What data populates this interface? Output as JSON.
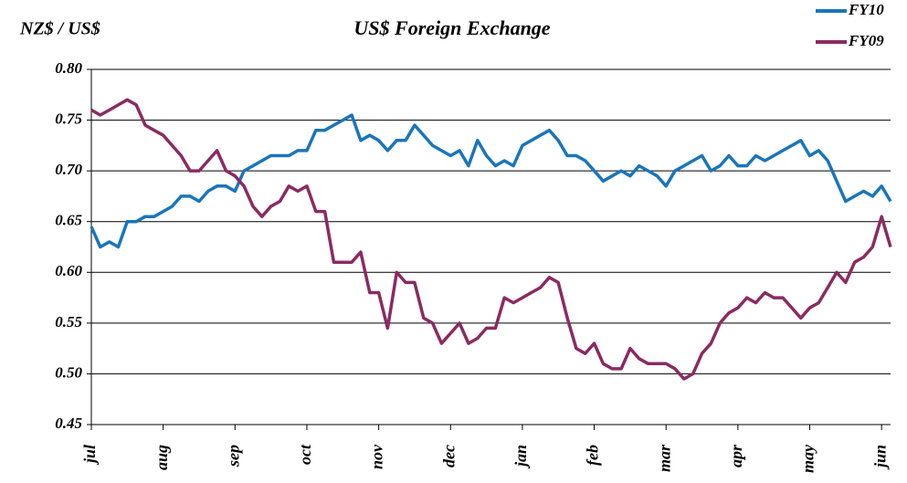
{
  "chart_data": {
    "type": "line",
    "title": "US$ Foreign Exchange",
    "y_label": "NZ$ / US$",
    "categories": [
      "jul",
      null,
      null,
      null,
      null,
      null,
      null,
      null,
      "aug",
      null,
      null,
      null,
      null,
      null,
      null,
      null,
      "sep",
      null,
      null,
      null,
      null,
      null,
      null,
      null,
      "oct",
      null,
      null,
      null,
      null,
      null,
      null,
      null,
      "nov",
      null,
      null,
      null,
      null,
      null,
      null,
      null,
      "dec",
      null,
      null,
      null,
      null,
      null,
      null,
      null,
      "jan",
      null,
      null,
      null,
      null,
      null,
      null,
      null,
      "feb",
      null,
      null,
      null,
      null,
      null,
      null,
      null,
      "mar",
      null,
      null,
      null,
      null,
      null,
      null,
      null,
      "apr",
      null,
      null,
      null,
      null,
      null,
      null,
      null,
      "may",
      null,
      null,
      null,
      null,
      null,
      null,
      null,
      "jun",
      null
    ],
    "series": [
      {
        "name": "FY10",
        "color": "#1a75bb",
        "values": [
          0.645,
          0.625,
          0.63,
          0.625,
          0.65,
          0.65,
          0.655,
          0.655,
          0.66,
          0.665,
          0.675,
          0.675,
          0.67,
          0.68,
          0.685,
          0.685,
          0.68,
          0.7,
          0.705,
          0.71,
          0.715,
          0.715,
          0.715,
          0.72,
          0.72,
          0.74,
          0.74,
          0.745,
          0.75,
          0.755,
          0.73,
          0.735,
          0.73,
          0.72,
          0.73,
          0.73,
          0.745,
          0.735,
          0.725,
          0.72,
          0.715,
          0.72,
          0.705,
          0.73,
          0.715,
          0.705,
          0.71,
          0.705,
          0.725,
          0.73,
          0.735,
          0.74,
          0.73,
          0.715,
          0.715,
          0.71,
          0.7,
          0.69,
          0.695,
          0.7,
          0.695,
          0.705,
          0.7,
          0.695,
          0.685,
          0.7,
          0.705,
          0.71,
          0.715,
          0.7,
          0.705,
          0.715,
          0.705,
          0.705,
          0.715,
          0.71,
          0.715,
          0.72,
          0.725,
          0.73,
          0.715,
          0.72,
          0.71,
          0.69,
          0.67,
          0.675,
          0.68,
          0.675,
          0.685,
          0.67
        ]
      },
      {
        "name": "FY09",
        "color": "#8b2a62",
        "values": [
          0.76,
          0.755,
          0.76,
          0.765,
          0.77,
          0.765,
          0.745,
          0.74,
          0.735,
          0.725,
          0.715,
          0.7,
          0.7,
          0.71,
          0.72,
          0.7,
          0.695,
          0.685,
          0.665,
          0.655,
          0.665,
          0.67,
          0.685,
          0.68,
          0.685,
          0.66,
          0.66,
          0.61,
          0.61,
          0.61,
          0.62,
          0.58,
          0.58,
          0.545,
          0.6,
          0.59,
          0.59,
          0.555,
          0.55,
          0.53,
          0.54,
          0.55,
          0.53,
          0.535,
          0.545,
          0.545,
          0.575,
          0.57,
          0.575,
          0.58,
          0.585,
          0.595,
          0.59,
          0.555,
          0.525,
          0.52,
          0.53,
          0.51,
          0.505,
          0.505,
          0.525,
          0.515,
          0.51,
          0.51,
          0.51,
          0.505,
          0.495,
          0.5,
          0.52,
          0.53,
          0.55,
          0.56,
          0.565,
          0.575,
          0.57,
          0.58,
          0.575,
          0.575,
          0.565,
          0.555,
          0.565,
          0.57,
          0.585,
          0.6,
          0.59,
          0.61,
          0.615,
          0.625,
          0.655,
          0.625
        ]
      }
    ],
    "ylim": [
      0.45,
      0.8
    ],
    "yticks": [
      {
        "value": 0.45,
        "label": "0.45"
      },
      {
        "value": 0.5,
        "label": "0.50"
      },
      0.55,
      {
        "value": 0.6,
        "label": "0.60"
      },
      0.65,
      {
        "value": 0.7,
        "label": "0.70"
      },
      0.75,
      {
        "value": 0.8,
        "label": "0.80"
      }
    ],
    "grid": true,
    "legend": "top-right"
  }
}
